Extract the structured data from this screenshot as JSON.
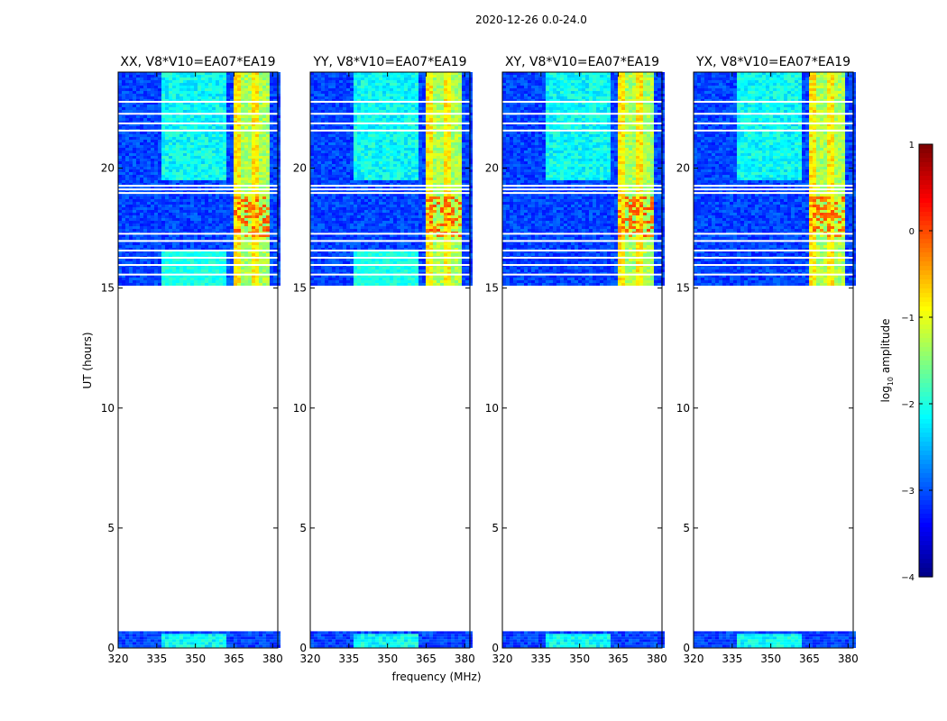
{
  "chart_data": {
    "type": "heatmap",
    "title": "2020-12-26 0.0-24.0",
    "xlabel": "frequency (MHz)",
    "ylabel": "UT (hours)",
    "xlim": [
      320,
      382
    ],
    "ylim": [
      0,
      24
    ],
    "xticks": [
      "320",
      "335",
      "350",
      "365",
      "380"
    ],
    "xtick_values": [
      320,
      335,
      350,
      365,
      380
    ],
    "yticks": [
      "0",
      "5",
      "10",
      "15",
      "20"
    ],
    "ytick_values": [
      0,
      5,
      10,
      15,
      20
    ],
    "panels": [
      {
        "title": "XX, V8*V10=EA07*EA19",
        "pol": "XX"
      },
      {
        "title": "YY, V8*V10=EA07*EA19",
        "pol": "YY"
      },
      {
        "title": "XY, V8*V10=EA07*EA19",
        "pol": "XY"
      },
      {
        "title": "YX, V8*V10=EA07*EA19",
        "pol": "YX"
      }
    ],
    "data_time_ranges_hours": [
      [
        0.0,
        0.7
      ],
      [
        15.1,
        24.0
      ]
    ],
    "data_gap_hours": [
      0.7,
      15.1
    ],
    "bright_rfi_band_mhz": [
      364,
      378
    ],
    "colorbar": {
      "label": "log10 amplitude",
      "label_prefix": "log",
      "label_sub": "10",
      "label_suffix": " amplitude",
      "range": [
        -4,
        1
      ],
      "ticks": [
        "1",
        "0",
        "−1",
        "−2",
        "−3",
        "−4"
      ],
      "tick_values": [
        1,
        0,
        -1,
        -2,
        -3,
        -4
      ],
      "colormap": "jet"
    }
  }
}
